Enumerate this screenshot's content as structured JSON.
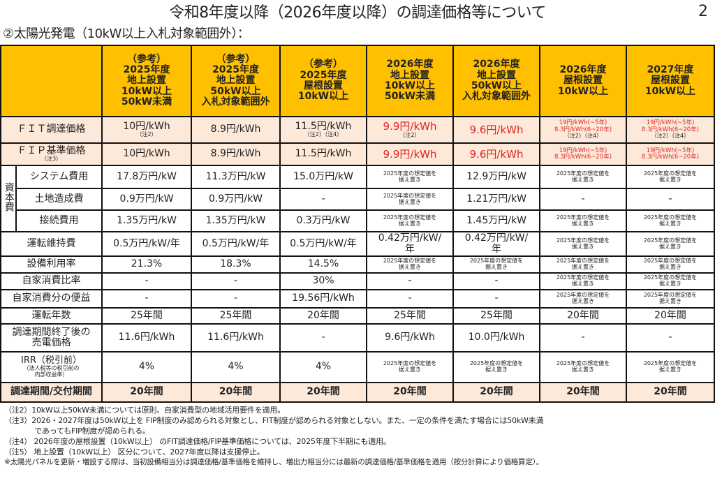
{
  "page": {
    "title": "令和8年度以降（2026年度以降）の調達価格等について",
    "page_number": "2",
    "subtitle": "②太陽光発電（10kW以上入札対象範囲外）："
  },
  "columns": [
    "（参考）\n2025年度\n地上設置\n10kW以上\n50kW未満",
    "（参考）\n2025年度\n地上設置\n50kW以上\n入札対象範囲外",
    "（参考）\n2025年度\n屋根設置\n10kW以上",
    "2026年度\n地上設置\n10kW以上\n50kW未満",
    "2026年度\n地上設置\n50kW以上\n入札対象範囲外",
    "2026年度\n屋根設置\n10kW以上",
    "2027年度\n屋根設置\n10kW以上"
  ],
  "group_label": "資本費",
  "rows": [
    {
      "label": "ＦＩＴ調達価格",
      "pink": true,
      "cells": [
        {
          "v": "10円/kWh",
          "note": "（注2）"
        },
        {
          "v": "8.9円/kWh"
        },
        {
          "v": "11.5円/kWh",
          "note": "（注2）（注4）"
        },
        {
          "v": "9.9円/kWh",
          "note": "（注2）",
          "red": true
        },
        {
          "v": "9.6円/kWh",
          "red": true
        },
        {
          "rs": "19円/kWh(~5年)\n8.3円/kWh(6~20年)",
          "note": "（注2）（注4）"
        },
        {
          "rs": "19円/kWh(~5年)\n8.3円/kWh(6~20年)",
          "note": "（注2）（注4）"
        }
      ]
    },
    {
      "label": "ＦＩＰ基準価格",
      "sub": "（注3）",
      "pink": true,
      "cells": [
        {
          "v": "10円/kWh"
        },
        {
          "v": "8.9円/kWh"
        },
        {
          "v": "11.5円/kWh"
        },
        {
          "v": "9.9円/kWh",
          "red": true
        },
        {
          "v": "9.6円/kWh",
          "red": true
        },
        {
          "rs": "19円/kWh(~5年)\n8.3円/kWh(6~20年)"
        },
        {
          "rs": "19円/kWh(~5年)\n8.3円/kWh(6~20年)"
        }
      ]
    },
    {
      "label": "システム費用",
      "group": true,
      "cells": [
        {
          "v": "17.8万円/kW"
        },
        {
          "v": "11.3万円/kW"
        },
        {
          "v": "15.0万円/kW"
        },
        {
          "s": "2025年度の想定値を\n据え置き"
        },
        {
          "v": "12.9万円/kW"
        },
        {
          "s": "2025年度の想定値を\n据え置き"
        },
        {
          "s": "2025年度の想定値を\n据え置き"
        }
      ]
    },
    {
      "label": "土地造成費",
      "group": true,
      "cells": [
        {
          "v": "0.9万円/kW"
        },
        {
          "v": "0.9万円/kW"
        },
        {
          "v": "-"
        },
        {
          "s": "2025年度の想定値を\n据え置き"
        },
        {
          "v": "1.21万円/kW"
        },
        {
          "v": "-"
        },
        {
          "v": "-"
        }
      ]
    },
    {
      "label": "接続費用",
      "group": true,
      "cells": [
        {
          "v": "1.35万円/kW"
        },
        {
          "v": "1.35万円/kW"
        },
        {
          "v": "0.3万円/kW"
        },
        {
          "s": "2025年度の想定値を\n据え置き"
        },
        {
          "v": "1.45万円/kW"
        },
        {
          "s": "2025年度の想定値を\n据え置き"
        },
        {
          "s": "2025年度の想定値を\n据え置き"
        }
      ]
    },
    {
      "label": "運転維持費",
      "cells": [
        {
          "v": "0.5万円/kW/年"
        },
        {
          "v": "0.5万円/kW/年"
        },
        {
          "v": "0.5万円/kW/年"
        },
        {
          "v": "0.42万円/kW/\n年"
        },
        {
          "v": "0.42万円/kW/\n年"
        },
        {
          "s": "2025年度の想定値を\n据え置き"
        },
        {
          "s": "2025年度の想定値を\n据え置き"
        }
      ]
    },
    {
      "label": "設備利用率",
      "cells": [
        {
          "v": "21.3%"
        },
        {
          "v": "18.3%"
        },
        {
          "v": "14.5%"
        },
        {
          "s": "2025年度の想定値を\n据え置き"
        },
        {
          "s": "2025年度の想定値を\n据え置き"
        },
        {
          "s": "2025年度の想定値を\n据え置き"
        },
        {
          "s": "2025年度の想定値を\n据え置き"
        }
      ]
    },
    {
      "label": "自家消費比率",
      "cells": [
        {
          "v": "-"
        },
        {
          "v": "-"
        },
        {
          "v": "30%"
        },
        {
          "v": "-"
        },
        {
          "v": "-"
        },
        {
          "s": "2025年度の想定値を\n据え置き"
        },
        {
          "s": "2025年度の想定値を\n据え置き"
        }
      ]
    },
    {
      "label": "自家消費分の便益",
      "cells": [
        {
          "v": "-"
        },
        {
          "v": "-"
        },
        {
          "v": "19.56円/kWh"
        },
        {
          "v": "-"
        },
        {
          "v": "-"
        },
        {
          "s": "2025年度の想定値を\n据え置き"
        },
        {
          "s": "2025年度の想定値を\n据え置き"
        }
      ]
    },
    {
      "label": "運転年数",
      "cells": [
        {
          "v": "25年間"
        },
        {
          "v": "25年間"
        },
        {
          "v": "20年間"
        },
        {
          "v": "25年間"
        },
        {
          "v": "25年間"
        },
        {
          "v": "20年間"
        },
        {
          "v": "20年間"
        }
      ]
    },
    {
      "label": "調達期間終了後の\n売電価格",
      "cells": [
        {
          "v": "11.6円/kWh"
        },
        {
          "v": "11.6円/kWh"
        },
        {
          "v": "-"
        },
        {
          "v": "9.6円/kWh"
        },
        {
          "v": "10.0円/kWh"
        },
        {
          "v": "-"
        },
        {
          "v": "-"
        }
      ]
    },
    {
      "label": "IRR（税引前）",
      "sub": "（法人税等の税引前の\n内部収益率）",
      "cells": [
        {
          "v": "4%"
        },
        {
          "v": "4%"
        },
        {
          "v": "4%"
        },
        {
          "s": "2025年度の想定値を\n据え置き"
        },
        {
          "s": "2025年度の想定値を\n据え置き"
        },
        {
          "s": "2025年度の想定値を\n据え置き"
        },
        {
          "s": "2025年度の想定値を\n据え置き"
        }
      ]
    },
    {
      "label": "調達期間/交付期間",
      "pink": true,
      "bold": true,
      "cells": [
        {
          "v": "20年間"
        },
        {
          "v": "20年間"
        },
        {
          "v": "20年間"
        },
        {
          "v": "20年間"
        },
        {
          "v": "20年間"
        },
        {
          "v": "20年間"
        },
        {
          "v": "20年間"
        }
      ]
    }
  ],
  "notes": [
    "（注2）10kW以上50kW未満については原則、自家消費型の地域活用要件を適用。",
    "（注3）2026・2027年度は50kW以上を FIP制度のみ認められる対象とし、FIT制度が認められる対象としない。また、一定の条件を満たす場合には50kW未満\n　　　　であってもFIP制度が認められる。",
    "（注4） 2026年度の屋根設置（10kW以上） のFIT調達価格/FIP基準価格については、2025年度下半期にも適用。",
    "（注5） 地上設置（10kW以上） 区分について、2027年度以降は支援停止。"
  ],
  "footnote": "※太陽光パネルを更新・増設する際は、当初設備相当分は調達価格/基準価格を維持し、増出力相当分には最新の調達価格/基準価格を適用（按分計算により価格算定）。",
  "colors": {
    "header_bg": "#FFC000",
    "pink_bg": "#FDE9D9",
    "red": "#E02424"
  }
}
